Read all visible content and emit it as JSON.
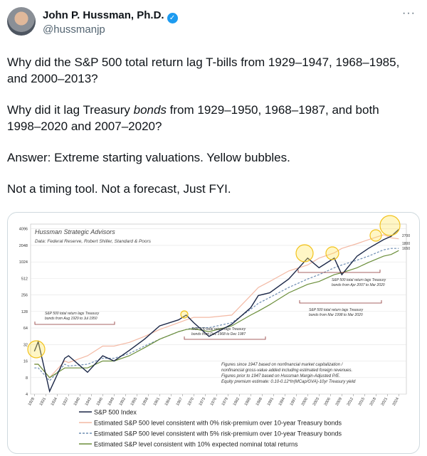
{
  "header": {
    "name": "John P. Hussman, Ph.D.",
    "handle": "@hussmanjp"
  },
  "tweet": {
    "paragraphs": [
      [
        "Why did the S&P 500 total return lag T-bills from 1929–1947, 1968–1985, and 2000–2013?"
      ],
      [
        "Why did it lag Treasury ",
        "bonds",
        " from 1929–1950, 1968–1987, and both 1998–2020 and 2007–2020?"
      ],
      [
        "Answer: Extreme starting valuations. Yellow bubbles."
      ],
      [
        "Not a timing tool. Not a forecast, Just FYI."
      ]
    ]
  },
  "chart_data": {
    "type": "line",
    "title": "Hussman Strategic Advisors",
    "subtitle": "Data: Federal Reserve, Robert Shiller, Standard & Poors",
    "log_scale": true,
    "grid": true,
    "xlim": [
      1927,
      2026
    ],
    "xticks": [
      1928,
      1931,
      1934,
      1937,
      1940,
      1943,
      1946,
      1949,
      1952,
      1955,
      1958,
      1961,
      1964,
      1967,
      1970,
      1973,
      1976,
      1979,
      1982,
      1985,
      1988,
      1991,
      1994,
      1997,
      2000,
      2003,
      2006,
      2009,
      2012,
      2015,
      2018,
      2021,
      2024
    ],
    "ylim": [
      4,
      5000
    ],
    "yticks": [
      4,
      8,
      16,
      32,
      64,
      128,
      256,
      512,
      1024,
      2048,
      4096
    ],
    "x": [
      1928,
      1929,
      1932,
      1936,
      1937,
      1942,
      1946,
      1949,
      1953,
      1957,
      1961,
      1966,
      1968,
      1970,
      1974,
      1980,
      1985,
      1987,
      1990,
      1995,
      2000,
      2003,
      2007,
      2009,
      2013,
      2016,
      2020,
      2022,
      2024
    ],
    "series": [
      {
        "name": "S&P 500 Index",
        "color": "#1b2747",
        "dash": false,
        "values": [
          24,
          36,
          4.5,
          18,
          20,
          10,
          20,
          16,
          25,
          40,
          70,
          90,
          110,
          80,
          45,
          75,
          150,
          250,
          280,
          500,
          1200,
          800,
          1200,
          600,
          1300,
          1800,
          2600,
          3000,
          4000
        ]
      },
      {
        "name": "Estimated S&P 500 level consistent with 0% risk-premium over 10-year Treasury bonds",
        "color": "#f3b9a4",
        "dash": false,
        "values": [
          14,
          14,
          8,
          16,
          15,
          20,
          30,
          30,
          35,
          45,
          60,
          80,
          90,
          100,
          100,
          110,
          250,
          350,
          450,
          700,
          900,
          1200,
          1500,
          1800,
          2200,
          2600,
          3200,
          2800,
          2700
        ]
      },
      {
        "name": "Estimated S&P 500 level consistent with 5% risk-premium over 10-year Treasury bonds",
        "color": "#6e8db3",
        "dash": true,
        "values": [
          12,
          12,
          7,
          14,
          13,
          14,
          18,
          18,
          22,
          30,
          40,
          55,
          60,
          65,
          65,
          80,
          140,
          180,
          230,
          350,
          500,
          600,
          800,
          900,
          1100,
          1300,
          1700,
          1800,
          1800
        ]
      },
      {
        "name": "Estimated S&P level consistent with 10% expected nominal total returns",
        "color": "#6b8e3a",
        "dash": false,
        "values": [
          14,
          14,
          8,
          12,
          12,
          12,
          16,
          16,
          20,
          28,
          40,
          55,
          60,
          62,
          55,
          70,
          110,
          130,
          170,
          280,
          400,
          450,
          600,
          650,
          800,
          1000,
          1300,
          1400,
          1650
        ]
      }
    ],
    "end_labels": [
      "2700",
      "1800",
      "1650"
    ],
    "annotations": [
      [
        "S&P 500 total return lags Treasury",
        "bonds from Apr 2007 to Mar 2020"
      ],
      [
        "S&P 500 total return lags Treasury",
        "bonds from Mar 1998 to Mar 2020"
      ],
      [
        "S&P 500 total return lags Treasury",
        "bonds from Aug 1929 to Jul 1950"
      ],
      [
        "S&P 500 total return lags Treasury",
        "bonds from Dec 1968 to Dec 1987"
      ]
    ],
    "note": [
      "Figures since 1947 based on nonfinancial market capitalization /",
      "nonfinancial gross-value added including estimated foreign revenues.",
      "Figures prior to 1947 based on Hussman Margin-Adjusted P/E.",
      "Equity premium estimate: 0.10-0.12*ln(MCap/GVA)-10yr Treasury yield"
    ]
  }
}
